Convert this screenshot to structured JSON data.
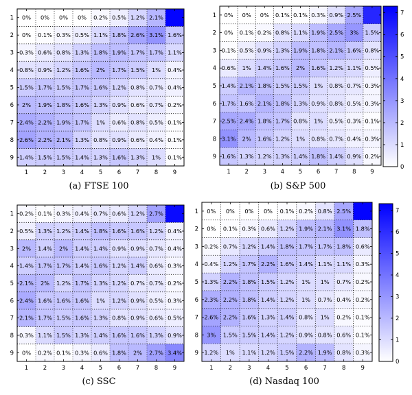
{
  "chart_data": [
    {
      "type": "heatmap",
      "caption": "(a) FTSE 100",
      "x_ticks": [
        "1",
        "2",
        "3",
        "4",
        "5",
        "6",
        "7",
        "8",
        "9"
      ],
      "y_ticks": [
        "1",
        "2",
        "3",
        "4",
        "5",
        "6",
        "7",
        "8",
        "9"
      ],
      "colorbar_ticks": [],
      "values": [
        [
          0,
          0,
          0,
          0,
          0.2,
          0.5,
          1.2,
          2.1,
          7.2
        ],
        [
          0,
          0.1,
          0.3,
          0.5,
          1.1,
          1.8,
          2.6,
          3.1,
          1.6
        ],
        [
          0.3,
          0.6,
          0.8,
          1.3,
          1.8,
          1.9,
          1.7,
          1.7,
          1.1
        ],
        [
          0.8,
          0.9,
          1.2,
          1.6,
          2,
          1.7,
          1.5,
          1,
          0.4
        ],
        [
          1.5,
          1.7,
          1.5,
          1.7,
          1.6,
          1.2,
          0.8,
          0.7,
          0.4
        ],
        [
          2,
          1.9,
          1.8,
          1.6,
          1.3,
          0.9,
          0.6,
          0.7,
          0.2
        ],
        [
          2.4,
          2.2,
          1.9,
          1.7,
          1,
          0.6,
          0.8,
          0.5,
          0.1
        ],
        [
          2.6,
          2.2,
          2.1,
          1.3,
          0.8,
          0.9,
          0.6,
          0.4,
          0.1
        ],
        [
          1.4,
          1.5,
          1.5,
          1.4,
          1.3,
          1.6,
          1.3,
          1,
          0.1
        ]
      ],
      "labels": [
        [
          "0%",
          "0%",
          "0%",
          "0%",
          "0.2%",
          "0.5%",
          "1.2%",
          "2.1%",
          ""
        ],
        [
          "0%",
          "0.1%",
          "0.3%",
          "0.5%",
          "1.1%",
          "1.8%",
          "2.6%",
          "3.1%",
          "1.6%"
        ],
        [
          "0.3%",
          "0.6%",
          "0.8%",
          "1.3%",
          "1.8%",
          "1.9%",
          "1.7%",
          "1.7%",
          "1.1%"
        ],
        [
          "0.8%",
          "0.9%",
          "1.2%",
          "1.6%",
          "2%",
          "1.7%",
          "1.5%",
          "1%",
          "0.4%"
        ],
        [
          "1.5%",
          "1.7%",
          "1.5%",
          "1.7%",
          "1.6%",
          "1.2%",
          "0.8%",
          "0.7%",
          "0.4%"
        ],
        [
          "2%",
          "1.9%",
          "1.8%",
          "1.6%",
          "1.3%",
          "0.9%",
          "0.6%",
          "0.7%",
          "0.2%"
        ],
        [
          "2.4%",
          "2.2%",
          "1.9%",
          "1.7%",
          "1%",
          "0.6%",
          "0.8%",
          "0.5%",
          "0.1%"
        ],
        [
          "2.6%",
          "2.2%",
          "2.1%",
          "1.3%",
          "0.8%",
          "0.9%",
          "0.6%",
          "0.4%",
          "0.1%"
        ],
        [
          "1.4%",
          "1.5%",
          "1.5%",
          "1.4%",
          "1.3%",
          "1.6%",
          "1.3%",
          "1%",
          "0.1%"
        ]
      ]
    },
    {
      "type": "heatmap",
      "caption": "(b) S&P 500",
      "x_ticks": [
        "1",
        "2",
        "3",
        "4",
        "5",
        "6",
        "7",
        "8",
        "9"
      ],
      "y_ticks": [
        "1",
        "2",
        "3",
        "4",
        "5",
        "6",
        "7",
        "8",
        "9"
      ],
      "colorbar_ticks": [
        "0",
        "1",
        "2",
        "3",
        "4",
        "5",
        "6",
        "7"
      ],
      "values": [
        [
          0,
          0,
          0,
          0.1,
          0.1,
          0.3,
          0.9,
          2.5,
          6.2
        ],
        [
          0,
          0.1,
          0.2,
          0.8,
          1.1,
          1.9,
          2.5,
          3,
          1.5
        ],
        [
          0.1,
          0.5,
          0.9,
          1.3,
          1.9,
          1.8,
          2.1,
          1.6,
          0.8
        ],
        [
          0.6,
          1,
          1.4,
          1.6,
          2,
          1.6,
          1.2,
          1.1,
          0.5
        ],
        [
          1.4,
          2.1,
          1.8,
          1.5,
          1.5,
          1,
          0.8,
          0.7,
          0.3
        ],
        [
          1.7,
          1.6,
          2.1,
          1.8,
          1.3,
          0.9,
          0.8,
          0.5,
          0.3
        ],
        [
          2.5,
          2.4,
          1.8,
          1.7,
          0.8,
          1,
          0.5,
          0.3,
          0.1
        ],
        [
          3.1,
          2,
          1.6,
          1.2,
          1,
          0.8,
          0.7,
          0.4,
          0.3
        ],
        [
          1.6,
          1.3,
          1.2,
          1.3,
          1.4,
          1.8,
          1.4,
          0.9,
          0.2
        ]
      ],
      "labels": [
        [
          "0%",
          "0%",
          "0%",
          "0.1%",
          "0.1%",
          "0.3%",
          "0.9%",
          "2.5%",
          ""
        ],
        [
          "0%",
          "0.1%",
          "0.2%",
          "0.8%",
          "1.1%",
          "1.9%",
          "2.5%",
          "3%",
          "1.5%"
        ],
        [
          "0.1%",
          "0.5%",
          "0.9%",
          "1.3%",
          "1.9%",
          "1.8%",
          "2.1%",
          "1.6%",
          "0.8%"
        ],
        [
          "0.6%",
          "1%",
          "1.4%",
          "1.6%",
          "2%",
          "1.6%",
          "1.2%",
          "1.1%",
          "0.5%"
        ],
        [
          "1.4%",
          "2.1%",
          "1.8%",
          "1.5%",
          "1.5%",
          "1%",
          "0.8%",
          "0.7%",
          "0.3%"
        ],
        [
          "1.7%",
          "1.6%",
          "2.1%",
          "1.8%",
          "1.3%",
          "0.9%",
          "0.8%",
          "0.5%",
          "0.3%"
        ],
        [
          "2.5%",
          "2.4%",
          "1.8%",
          "1.7%",
          "0.8%",
          "1%",
          "0.5%",
          "0.3%",
          "0.1%"
        ],
        [
          "3.1%",
          "2%",
          "1.6%",
          "1.2%",
          "1%",
          "0.8%",
          "0.7%",
          "0.4%",
          "0.3%"
        ],
        [
          "1.6%",
          "1.3%",
          "1.2%",
          "1.3%",
          "1.4%",
          "1.8%",
          "1.4%",
          "0.9%",
          "0.2%"
        ]
      ]
    },
    {
      "type": "heatmap",
      "caption": "(c) SSC",
      "x_ticks": [
        "1",
        "2",
        "3",
        "4",
        "5",
        "6",
        "7",
        "8",
        "9"
      ],
      "y_ticks": [
        "1",
        "2",
        "3",
        "4",
        "5",
        "6",
        "7",
        "8",
        "9"
      ],
      "colorbar_ticks": [],
      "values": [
        [
          0.2,
          0.1,
          0.3,
          0.4,
          0.7,
          0.6,
          1.2,
          2.7,
          7
        ],
        [
          0.5,
          1.3,
          1.2,
          1.4,
          1.8,
          1.6,
          1.6,
          1.2,
          0.4
        ],
        [
          2,
          1.4,
          2,
          1.4,
          1.4,
          0.9,
          0.9,
          0.7,
          0.4
        ],
        [
          1.4,
          1.7,
          1.7,
          1.4,
          1.6,
          1.2,
          1.4,
          0.6,
          0.3
        ],
        [
          2.1,
          2,
          1.2,
          1.7,
          1.3,
          1.2,
          0.7,
          0.7,
          0.2
        ],
        [
          2.4,
          1.6,
          1.6,
          1.6,
          1,
          1.2,
          0.9,
          0.5,
          0.3
        ],
        [
          2.1,
          1.7,
          1.5,
          1.6,
          1.3,
          0.8,
          0.9,
          0.6,
          0.5
        ],
        [
          0.3,
          1.1,
          1.5,
          1.3,
          1.4,
          1.6,
          1.6,
          1.3,
          0.9
        ],
        [
          0,
          0.2,
          0.1,
          0.3,
          0.6,
          1.8,
          2,
          2.7,
          3.4
        ]
      ],
      "labels": [
        [
          "0.2%",
          "0.1%",
          "0.3%",
          "0.4%",
          "0.7%",
          "0.6%",
          "1.2%",
          "2.7%",
          ""
        ],
        [
          "0.5%",
          "1.3%",
          "1.2%",
          "1.4%",
          "1.8%",
          "1.6%",
          "1.6%",
          "1.2%",
          "0.4%"
        ],
        [
          "2%",
          "1.4%",
          "2%",
          "1.4%",
          "1.4%",
          "0.9%",
          "0.9%",
          "0.7%",
          "0.4%"
        ],
        [
          "1.4%",
          "1.7%",
          "1.7%",
          "1.4%",
          "1.6%",
          "1.2%",
          "1.4%",
          "0.6%",
          "0.3%"
        ],
        [
          "2.1%",
          "2%",
          "1.2%",
          "1.7%",
          "1.3%",
          "1.2%",
          "0.7%",
          "0.7%",
          "0.2%"
        ],
        [
          "2.4%",
          "1.6%",
          "1.6%",
          "1.6%",
          "1%",
          "1.2%",
          "0.9%",
          "0.5%",
          "0.3%"
        ],
        [
          "2.1%",
          "1.7%",
          "1.5%",
          "1.6%",
          "1.3%",
          "0.8%",
          "0.9%",
          "0.6%",
          "0.5%"
        ],
        [
          "0.3%",
          "1.1%",
          "1.5%",
          "1.3%",
          "1.4%",
          "1.6%",
          "1.6%",
          "1.3%",
          "0.9%"
        ],
        [
          "0%",
          "0.2%",
          "0.1%",
          "0.3%",
          "0.6%",
          "1.8%",
          "2%",
          "2.7%",
          "3.4%"
        ]
      ]
    },
    {
      "type": "heatmap",
      "caption": "(d) Nasdaq 100",
      "x_ticks": [
        "1",
        "2",
        "3",
        "4",
        "5",
        "6",
        "7",
        "8",
        "9"
      ],
      "y_ticks": [
        "1",
        "2",
        "3",
        "4",
        "5",
        "6",
        "7",
        "8",
        "9"
      ],
      "colorbar_ticks": [
        "0",
        "1",
        "2",
        "3",
        "4",
        "5",
        "6",
        "7"
      ],
      "values": [
        [
          0,
          0,
          0,
          0,
          0.1,
          0.2,
          0.8,
          2.5,
          7.2
        ],
        [
          0,
          0.1,
          0.3,
          0.6,
          1.2,
          1.9,
          2.1,
          3.1,
          1.8
        ],
        [
          0.2,
          0.7,
          1.2,
          1.4,
          1.8,
          1.7,
          1.7,
          1.8,
          0.6
        ],
        [
          0.4,
          1.2,
          1.7,
          2.2,
          1.6,
          1.4,
          1.1,
          1.1,
          0.3
        ],
        [
          1.3,
          2.2,
          1.8,
          1.5,
          1.2,
          1,
          1,
          0.7,
          0.2
        ],
        [
          2.3,
          2.2,
          1.8,
          1.4,
          1.2,
          1,
          0.7,
          0.4,
          0.2
        ],
        [
          2.6,
          2.2,
          1.6,
          1.3,
          1.4,
          0.8,
          1,
          0.2,
          0.1
        ],
        [
          3,
          1.5,
          1.5,
          1.4,
          1.2,
          0.9,
          0.8,
          0.6,
          0.1
        ],
        [
          1.2,
          1,
          1.1,
          1.2,
          1.5,
          2.2,
          1.9,
          0.8,
          0.3
        ]
      ],
      "labels": [
        [
          "0%",
          "0%",
          "0%",
          "0%",
          "0.1%",
          "0.2%",
          "0.8%",
          "2.5%",
          ""
        ],
        [
          "0%",
          "0.1%",
          "0.3%",
          "0.6%",
          "1.2%",
          "1.9%",
          "2.1%",
          "3.1%",
          "1.8%"
        ],
        [
          "0.2%",
          "0.7%",
          "1.2%",
          "1.4%",
          "1.8%",
          "1.7%",
          "1.7%",
          "1.8%",
          "0.6%"
        ],
        [
          "0.4%",
          "1.2%",
          "1.7%",
          "2.2%",
          "1.6%",
          "1.4%",
          "1.1%",
          "1.1%",
          "0.3%"
        ],
        [
          "1.3%",
          "2.2%",
          "1.8%",
          "1.5%",
          "1.2%",
          "1%",
          "1%",
          "0.7%",
          "0.2%"
        ],
        [
          "2.3%",
          "2.2%",
          "1.8%",
          "1.4%",
          "1.2%",
          "1%",
          "0.7%",
          "0.4%",
          "0.2%"
        ],
        [
          "2.6%",
          "2.2%",
          "1.6%",
          "1.3%",
          "1.4%",
          "0.8%",
          "1%",
          "0.2%",
          "0.1%"
        ],
        [
          "3%",
          "1.5%",
          "1.5%",
          "1.4%",
          "1.2%",
          "0.9%",
          "0.8%",
          "0.6%",
          "0.1%"
        ],
        [
          "1.2%",
          "1%",
          "1.1%",
          "1.2%",
          "1.5%",
          "2.2%",
          "1.9%",
          "0.8%",
          "0.3%"
        ]
      ]
    }
  ],
  "colorscale": {
    "min": 0,
    "max": 7.3,
    "low": "#ffffff",
    "high": "#0000ff"
  }
}
